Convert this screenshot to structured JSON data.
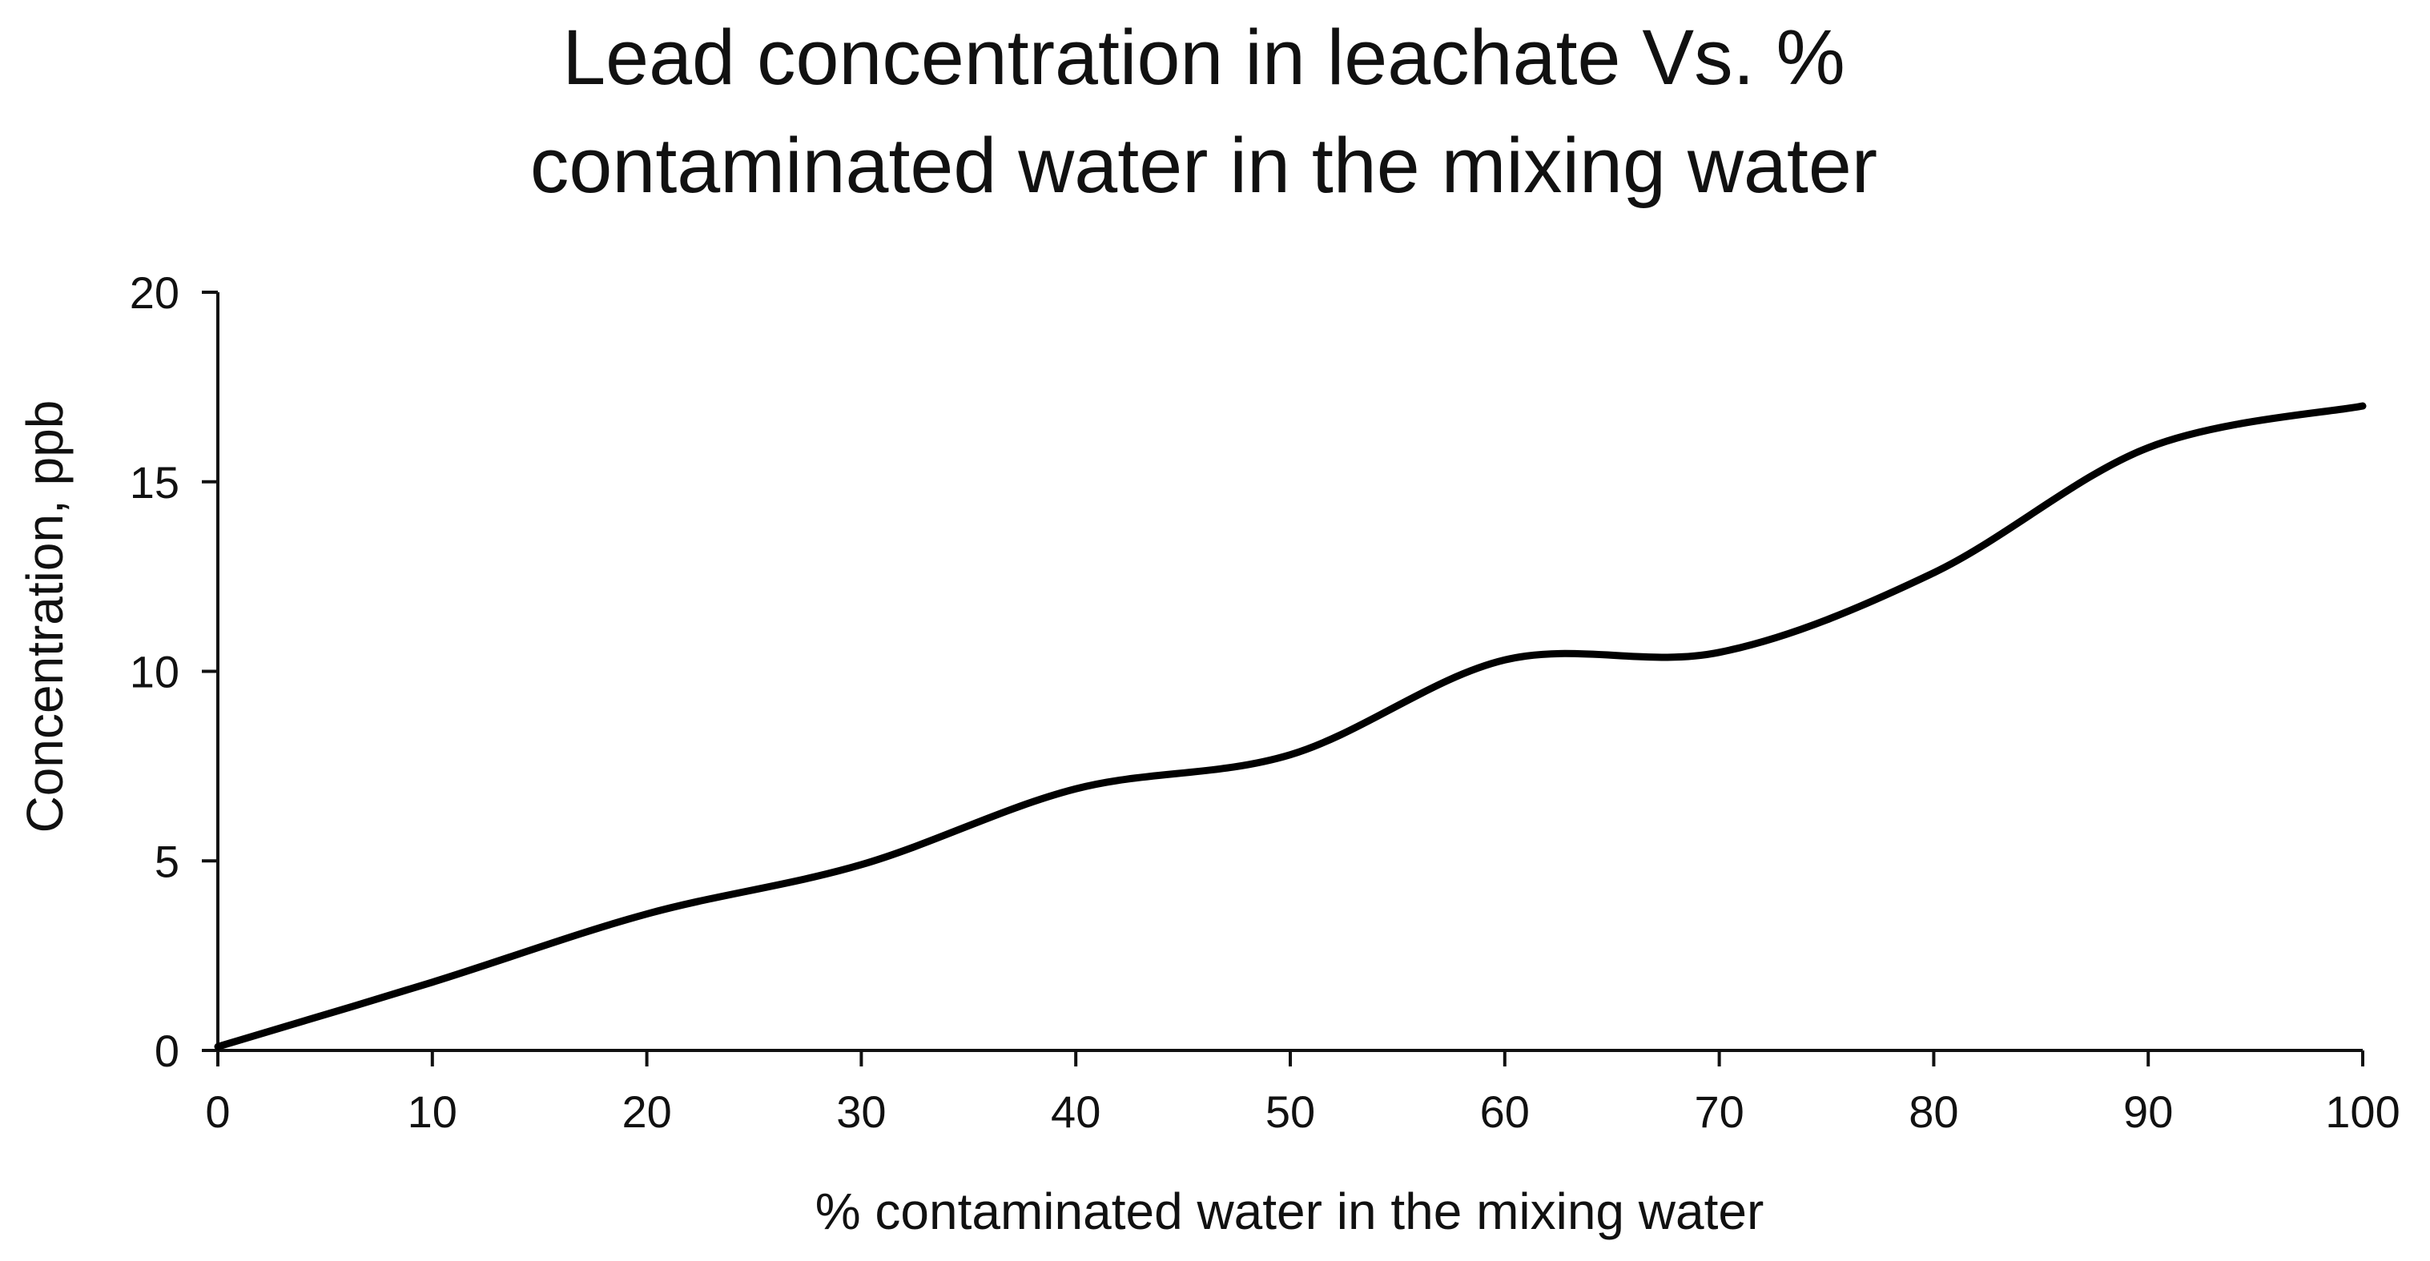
{
  "chart_data": {
    "type": "line",
    "title": [
      "Lead concentration in leachate Vs. %",
      "contaminated water in the mixing water"
    ],
    "xlabel": "% contaminated water in the mixing water",
    "ylabel": "Concentration, ppb",
    "xlim": [
      0,
      100
    ],
    "ylim": [
      0,
      20
    ],
    "xticks": [
      0,
      10,
      20,
      30,
      40,
      50,
      60,
      70,
      80,
      90,
      100
    ],
    "yticks": [
      0,
      5,
      10,
      15,
      20
    ],
    "grid": false,
    "legend": "none",
    "series": [
      {
        "name": "Lead concentration",
        "color": "#000000",
        "smooth": true,
        "x": [
          0,
          10,
          20,
          30,
          40,
          50,
          60,
          70,
          80,
          90,
          100
        ],
        "y": [
          0.1,
          1.8,
          3.6,
          4.9,
          6.9,
          7.8,
          10.3,
          10.5,
          12.6,
          15.9,
          17.0
        ]
      }
    ]
  }
}
